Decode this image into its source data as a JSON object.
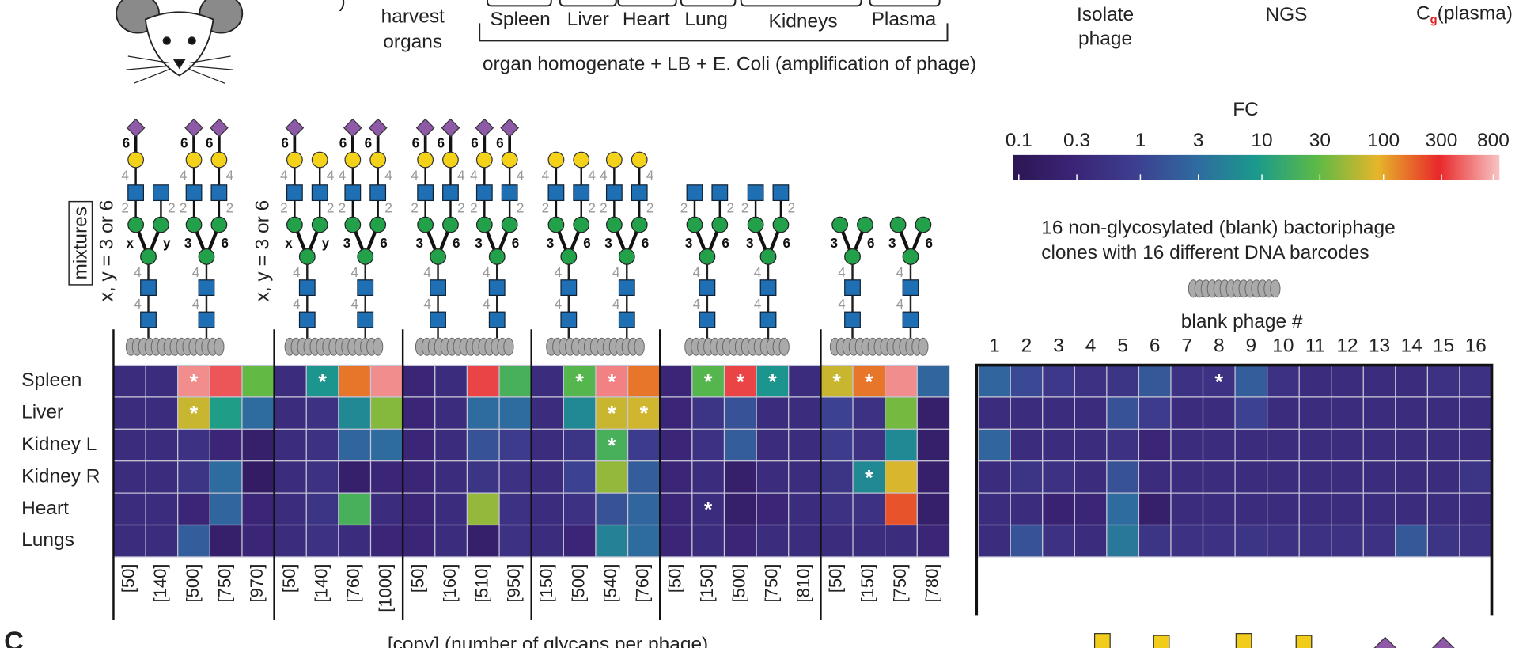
{
  "header": {
    "harvest": [
      "harvest",
      "organs"
    ],
    "organs": [
      "Spleen",
      "Liver",
      "Heart",
      "Lung",
      "Kidneys",
      "Plasma"
    ],
    "homogenate": "organ homogenate + LB + E. Coli (amplification of phage)",
    "isolate": [
      "Isolate",
      "phage"
    ],
    "ngs": "NGS",
    "ratio": {
      "c": "C",
      "sub": "g",
      "tail": "(plasma)"
    }
  },
  "mixtures": "mixtures",
  "xy_note": "x, y = 3 or 6",
  "blank_note": [
    "16 non-glycosylated (blank) bactoriphage",
    "clones with 16 different DNA barcodes"
  ],
  "blank_axis": "blank phage #",
  "panel_label": "C",
  "bottom_caption": "[copy] (number of glycans per phage)",
  "glycans": [
    {
      "stem": [
        "4",
        "4"
      ],
      "branch": [
        "x",
        "y"
      ],
      "antennae": [
        [
          "2",
          "4",
          "6"
        ],
        [
          "2"
        ]
      ]
    },
    {
      "stem": [
        "4",
        "4"
      ],
      "branch": [
        "3",
        "6"
      ],
      "antennae": [
        [
          "2",
          "4",
          "6"
        ],
        [
          "2",
          "4",
          "6"
        ]
      ]
    },
    {
      "stem": [
        "4",
        "4"
      ],
      "branch": [
        "x",
        "y"
      ],
      "antennae": [
        [
          "2",
          "4",
          "6"
        ],
        [
          "2",
          "4"
        ]
      ]
    },
    {
      "stem": [
        "4",
        "4"
      ],
      "branch": [
        "3",
        "6"
      ],
      "antennae": [
        [
          "2",
          "4",
          "6"
        ],
        [
          "2",
          "4",
          "6"
        ]
      ]
    },
    {
      "stem": [
        "4",
        "4"
      ],
      "branch": [
        "3",
        "6"
      ],
      "antennae": [
        [
          "2",
          "4",
          "6"
        ],
        [
          "2",
          "4",
          "6"
        ]
      ]
    },
    {
      "stem": [
        "4",
        "4"
      ],
      "branch": [
        "3",
        "6"
      ],
      "antennae": [
        [
          "2",
          "4",
          "6"
        ],
        [
          "2",
          "4",
          "6"
        ]
      ]
    },
    {
      "stem": [
        "4",
        "4"
      ],
      "branch": [
        "3",
        "6"
      ],
      "antennae": [
        [
          "2",
          "4"
        ],
        [
          "2",
          "4"
        ]
      ]
    },
    {
      "stem": [
        "4",
        "4"
      ],
      "branch": [
        "3",
        "6"
      ],
      "antennae": [
        [
          "2",
          "4"
        ],
        [
          "2",
          "4"
        ]
      ]
    },
    {
      "stem": [
        "4",
        "4"
      ],
      "branch": [
        "3",
        "6"
      ],
      "antennae": [
        [
          "2"
        ],
        [
          "2"
        ]
      ]
    },
    {
      "stem": [
        "4",
        "4"
      ],
      "branch": [
        "3",
        "6"
      ],
      "antennae": [
        [
          "2"
        ],
        [
          "2"
        ]
      ]
    },
    {
      "stem": [
        "4",
        "4"
      ],
      "branch": [
        "3",
        "6"
      ],
      "antennae": [
        [],
        []
      ]
    },
    {
      "stem": [
        "4",
        "4"
      ],
      "branch": [
        "3",
        "6"
      ],
      "antennae": [
        [],
        []
      ]
    }
  ],
  "chart_data": [
    {
      "type": "heatmap",
      "rows": [
        "Spleen",
        "Liver",
        "Kidney L",
        "Kidney R",
        "Heart",
        "Lungs"
      ],
      "categories": [
        "[50]",
        "[140]",
        "[500]",
        "[750]",
        "[970]",
        "[50]",
        "[140]",
        "[760]",
        "[1000]",
        "[50]",
        "[160]",
        "[510]",
        "[950]",
        "[150]",
        "[500]",
        "[540]",
        "[760]",
        "[50]",
        "[150]",
        "[500]",
        "[750]",
        "[810]",
        "[50]",
        "[150]",
        "[750]",
        "[780]"
      ],
      "values": [
        [
          0.4,
          0.4,
          600,
          400,
          30,
          0.4,
          8,
          150,
          600,
          0.3,
          0.4,
          350,
          20,
          0.4,
          25,
          550,
          150,
          0.3,
          25,
          350,
          8,
          0.4,
          70,
          150,
          600,
          2.5
        ],
        [
          0.4,
          0.4,
          70,
          10,
          3,
          0.4,
          0.5,
          6,
          40,
          0.3,
          0.4,
          3,
          3,
          0.4,
          6,
          70,
          75,
          0.3,
          0.6,
          1.5,
          0.4,
          0.4,
          1,
          0.5,
          35,
          0.2
        ],
        [
          0.4,
          0.4,
          0.5,
          0.3,
          0.2,
          0.4,
          0.5,
          2.5,
          3,
          0.3,
          0.4,
          1.5,
          0.8,
          0.4,
          0.6,
          20,
          0.8,
          0.3,
          0.5,
          2,
          0.4,
          0.4,
          0.8,
          0.5,
          6,
          0.2
        ],
        [
          0.4,
          0.4,
          0.6,
          3,
          0.15,
          0.4,
          0.5,
          0.2,
          0.3,
          0.3,
          0.4,
          0.6,
          0.5,
          0.4,
          1,
          45,
          2,
          0.3,
          0.4,
          0.2,
          0.4,
          0.4,
          0.6,
          6,
          80,
          0.2
        ],
        [
          0.4,
          0.4,
          0.3,
          2.5,
          0.3,
          0.4,
          0.6,
          20,
          0.4,
          0.3,
          0.4,
          45,
          0.5,
          0.4,
          0.5,
          1.5,
          2.5,
          0.3,
          0.4,
          0.2,
          0.3,
          0.4,
          0.5,
          0.5,
          200,
          0.2
        ],
        [
          0.4,
          0.4,
          2,
          0.2,
          0.3,
          0.4,
          0.5,
          0.4,
          0.3,
          0.3,
          0.4,
          0.2,
          0.5,
          0.4,
          0.3,
          5,
          3,
          0.3,
          0.4,
          0.3,
          0.4,
          0.4,
          0.4,
          0.4,
          0.4,
          0.3
        ]
      ],
      "value_labels": [
        [
          null,
          null,
          "*",
          null,
          null,
          null,
          "*",
          null,
          null,
          null,
          null,
          null,
          null,
          null,
          "*",
          "*",
          null,
          null,
          "*",
          "*",
          "*",
          null,
          "*",
          "*",
          null,
          null
        ],
        [
          null,
          null,
          "*",
          null,
          null,
          null,
          null,
          null,
          null,
          null,
          null,
          null,
          null,
          null,
          null,
          "*",
          "*",
          null,
          null,
          null,
          null,
          null,
          null,
          null,
          null,
          null
        ],
        [
          null,
          null,
          null,
          null,
          null,
          null,
          null,
          null,
          null,
          null,
          null,
          null,
          null,
          null,
          null,
          "*",
          null,
          null,
          null,
          null,
          null,
          null,
          null,
          null,
          null,
          null
        ],
        [
          null,
          null,
          null,
          null,
          null,
          null,
          null,
          null,
          null,
          null,
          null,
          null,
          null,
          null,
          null,
          null,
          null,
          null,
          null,
          null,
          null,
          null,
          null,
          "*",
          null,
          null
        ],
        [
          null,
          null,
          null,
          null,
          null,
          null,
          null,
          null,
          null,
          null,
          null,
          null,
          null,
          null,
          null,
          null,
          null,
          null,
          "*",
          null,
          null,
          null,
          null,
          null,
          null,
          null
        ],
        [
          null,
          null,
          null,
          null,
          null,
          null,
          null,
          null,
          null,
          null,
          null,
          null,
          null,
          null,
          null,
          null,
          null,
          null,
          null,
          null,
          null,
          null,
          null,
          null,
          null,
          null
        ]
      ],
      "colorbar": {
        "title": "FC",
        "scale": "log",
        "lim": [
          0.09,
          900
        ],
        "ticks": [
          0.1,
          0.3,
          1,
          3,
          10,
          30,
          100,
          300,
          800
        ],
        "colormap": [
          "#2c1654",
          "#3b2476",
          "#3d3e8f",
          "#2f6aa0",
          "#1a9a8c",
          "#5cba46",
          "#e6b52a",
          "#e8282a",
          "#f8c4c4"
        ]
      }
    },
    {
      "type": "heatmap",
      "categories": [
        1,
        2,
        3,
        4,
        5,
        6,
        7,
        8,
        9,
        10,
        11,
        12,
        13,
        14,
        15,
        16
      ],
      "values": [
        [
          2.5,
          1.2,
          0.7,
          0.5,
          0.6,
          1.8,
          0.5,
          0.5,
          2,
          0.5,
          0.4,
          0.4,
          0.4,
          0.4,
          0.5,
          0.5
        ],
        [
          0.4,
          0.4,
          0.4,
          0.4,
          1.5,
          0.8,
          0.4,
          0.4,
          1,
          0.4,
          0.4,
          0.4,
          0.4,
          0.4,
          0.4,
          0.4
        ],
        [
          2.5,
          0.4,
          0.4,
          0.4,
          0.5,
          0.3,
          0.4,
          0.4,
          0.4,
          0.4,
          0.4,
          0.4,
          0.4,
          0.4,
          0.4,
          0.4
        ],
        [
          0.4,
          0.6,
          0.5,
          0.4,
          1.5,
          0.4,
          0.4,
          0.4,
          0.4,
          0.4,
          0.4,
          0.4,
          0.4,
          0.4,
          0.4,
          0.6
        ],
        [
          0.4,
          0.4,
          0.25,
          0.3,
          3,
          0.2,
          0.4,
          0.4,
          0.4,
          0.4,
          0.4,
          0.4,
          0.4,
          0.4,
          0.4,
          0.4
        ],
        [
          0.4,
          1.5,
          0.5,
          0.4,
          4,
          0.6,
          0.5,
          0.5,
          0.6,
          0.5,
          0.5,
          0.5,
          0.5,
          1.8,
          0.6,
          0.5
        ]
      ],
      "value_labels": [
        [
          null,
          null,
          null,
          null,
          null,
          null,
          null,
          "*",
          null,
          null,
          null,
          null,
          null,
          null,
          null,
          null
        ],
        [
          null,
          null,
          null,
          null,
          null,
          null,
          null,
          null,
          null,
          null,
          null,
          null,
          null,
          null,
          null,
          null
        ],
        [
          null,
          null,
          null,
          null,
          null,
          null,
          null,
          null,
          null,
          null,
          null,
          null,
          null,
          null,
          null,
          null
        ],
        [
          null,
          null,
          null,
          null,
          null,
          null,
          null,
          null,
          null,
          null,
          null,
          null,
          null,
          null,
          null,
          null
        ],
        [
          null,
          null,
          null,
          null,
          null,
          null,
          null,
          null,
          null,
          null,
          null,
          null,
          null,
          null,
          null,
          null
        ],
        [
          null,
          null,
          null,
          null,
          null,
          null,
          null,
          null,
          null,
          null,
          null,
          null,
          null,
          null,
          null,
          null
        ]
      ]
    }
  ]
}
